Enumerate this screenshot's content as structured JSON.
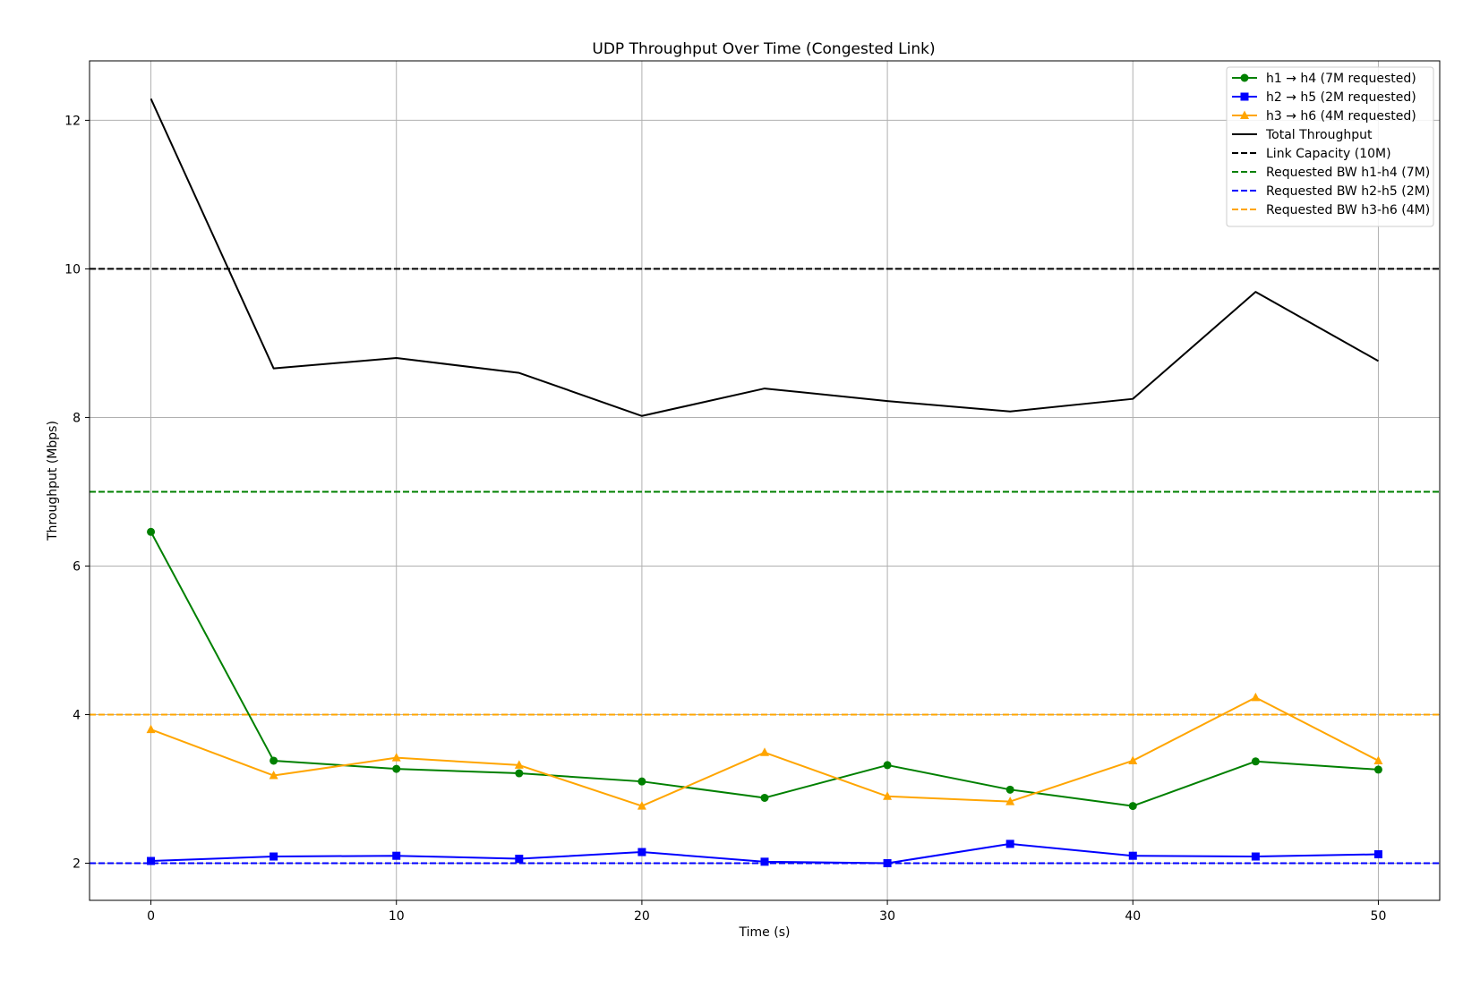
{
  "chart_data": {
    "type": "line",
    "title": "UDP Throughput Over Time (Congested Link)",
    "xlabel": "Time (s)",
    "ylabel": "Throughput (Mbps)",
    "xlim": [
      -2.5,
      52.5
    ],
    "ylim": [
      1.5,
      12.8
    ],
    "xticks": [
      0,
      10,
      20,
      30,
      40,
      50
    ],
    "yticks": [
      2,
      4,
      6,
      8,
      10,
      12
    ],
    "grid": true,
    "legend_position": "top-right",
    "x": [
      0,
      5,
      10,
      15,
      20,
      25,
      30,
      35,
      40,
      45,
      50
    ],
    "series": [
      {
        "name": "h1 → h4 (7M requested)",
        "color": "#008000",
        "marker": "circle",
        "values": [
          6.46,
          3.38,
          3.27,
          3.21,
          3.1,
          2.88,
          3.32,
          2.99,
          2.77,
          3.37,
          3.26
        ]
      },
      {
        "name": "h2 → h5 (2M requested)",
        "color": "#0000ff",
        "marker": "square",
        "values": [
          2.03,
          2.09,
          2.1,
          2.06,
          2.15,
          2.02,
          2.0,
          2.26,
          2.1,
          2.09,
          2.12
        ]
      },
      {
        "name": "h3 → h6 (4M requested)",
        "color": "#ffa500",
        "marker": "triangle",
        "values": [
          3.8,
          3.18,
          3.42,
          3.32,
          2.77,
          3.49,
          2.9,
          2.83,
          3.38,
          4.23,
          3.38
        ]
      },
      {
        "name": "Total Throughput",
        "color": "#000000",
        "marker": "none",
        "values": [
          12.29,
          8.66,
          8.8,
          8.6,
          8.02,
          8.39,
          8.22,
          8.08,
          8.25,
          9.69,
          8.76
        ]
      }
    ],
    "reference_lines": [
      {
        "name": "Link Capacity (10M)",
        "value": 10,
        "color": "#000000"
      },
      {
        "name": "Requested BW h1-h4 (7M)",
        "value": 7,
        "color": "#008000"
      },
      {
        "name": "Requested BW h2-h5 (2M)",
        "value": 2,
        "color": "#0000ff"
      },
      {
        "name": "Requested BW h3-h6 (4M)",
        "value": 4,
        "color": "#ffa500"
      }
    ]
  }
}
